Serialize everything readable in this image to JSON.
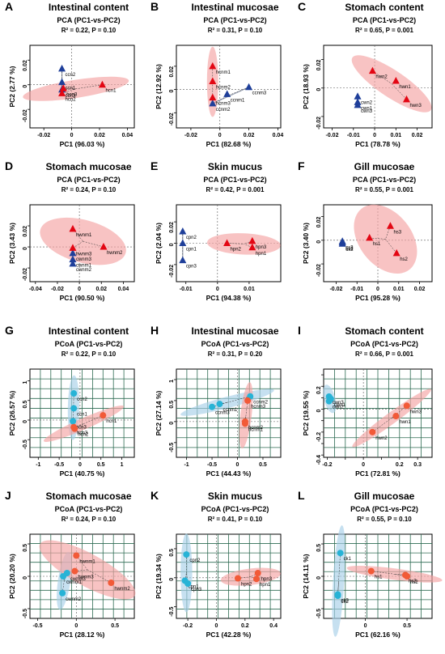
{
  "colors": {
    "group_a": "#e30613",
    "group_b": "#1f3f9a",
    "ellipse_a": "#f4a3a3",
    "ellipse_b": "#a8cfe8",
    "pcoa_a": "#f25a38",
    "pcoa_b": "#27b3d6",
    "grid": "#2d6b52"
  },
  "chart_data": [
    {
      "letter": "A",
      "title": "Intestinal content",
      "subtitle": "PCA (PC1-vs-PC2)",
      "stats": "R² = 0.22, P = 0.10",
      "type": "scatter",
      "method": "PCA",
      "marker": "triangle",
      "xlabel": "PC1 (96.03 %)",
      "ylabel": "PC2 (2.77 %)",
      "xlim": [
        -0.03,
        0.045
      ],
      "ylim": [
        -0.035,
        0.032
      ],
      "xticks": [
        -0.02,
        0,
        0.02,
        0.04
      ],
      "yticks": [
        -0.02,
        0,
        0.02
      ],
      "xtick_labels": [
        "-0.02",
        "0",
        "0.02",
        "0.04"
      ],
      "ytick_labels": [
        "-0.02",
        "0",
        "0.02"
      ],
      "series": [
        {
          "points": [
            {
              "label": "ccn2",
              "x": -0.007,
              "y": 0.013
            },
            {
              "label": "ccn1",
              "x": -0.007,
              "y": 0.002
            },
            {
              "label": "ccn3",
              "x": -0.007,
              "y": -0.004
            }
          ]
        },
        {
          "points": [
            {
              "label": "hcn1",
              "x": 0.022,
              "y": 0.0
            },
            {
              "label": "hcn3",
              "x": -0.006,
              "y": -0.003
            },
            {
              "label": "hcn2",
              "x": -0.007,
              "y": -0.007
            }
          ]
        }
      ]
    },
    {
      "letter": "B",
      "title": "Intestinal mucosae",
      "subtitle": "PCA (PC1-vs-PC2)",
      "stats": "R² = 0.31, P = 0.10",
      "type": "scatter",
      "method": "PCA",
      "marker": "triangle",
      "xlabel": "PC1 (82.68 %)",
      "ylabel": "PC2 (12.92 %)",
      "xlim": [
        -0.03,
        0.042
      ],
      "ylim": [
        -0.033,
        0.038
      ],
      "xticks": [
        -0.02,
        0,
        0.02,
        0.04
      ],
      "yticks": [
        -0.02,
        0,
        0.02
      ],
      "xtick_labels": [
        "-0.02",
        "0",
        "0.02",
        "0.04"
      ],
      "ytick_labels": [
        "-0.02",
        "0",
        "0.02"
      ],
      "series": [
        {
          "points": [
            {
              "label": "ccnm3",
              "x": 0.02,
              "y": 0.002
            },
            {
              "label": "ccnm1",
              "x": 0.005,
              "y": -0.004
            },
            {
              "label": "ccnm2",
              "x": -0.005,
              "y": -0.012
            }
          ]
        },
        {
          "points": [
            {
              "label": "hcnm1",
              "x": -0.005,
              "y": 0.02
            },
            {
              "label": "hcnm2",
              "x": -0.005,
              "y": 0.007
            },
            {
              "label": "hcnm3",
              "x": -0.005,
              "y": -0.007
            }
          ]
        }
      ]
    },
    {
      "letter": "C",
      "title": "Stomach content",
      "subtitle": "PCA (PC1-vs-PC2)",
      "stats": "R² = 0.65, P = 0.001",
      "type": "scatter",
      "method": "PCA",
      "marker": "triangle",
      "xlabel": "PC1 (78.78 %)",
      "ylabel": "PC2 (18.93 %)",
      "xlim": [
        -0.024,
        0.027
      ],
      "ylim": [
        -0.028,
        0.03
      ],
      "xticks": [
        -0.02,
        -0.01,
        0,
        0.01,
        0.02
      ],
      "yticks": [
        -0.02,
        0,
        0.02
      ],
      "xtick_labels": [
        "-0.02",
        "-0.01",
        "0",
        "0.01",
        "0.02"
      ],
      "ytick_labels": [
        "-0.02",
        "0",
        "0.02"
      ],
      "series": [
        {
          "points": [
            {
              "label": "cwn2",
              "x": -0.008,
              "y": -0.006
            },
            {
              "label": "cwn1",
              "x": -0.008,
              "y": -0.01
            },
            {
              "label": "cwn3",
              "x": -0.008,
              "y": -0.012
            }
          ]
        },
        {
          "points": [
            {
              "label": "hwn2",
              "x": -0.001,
              "y": 0.012
            },
            {
              "label": "hwn1",
              "x": 0.01,
              "y": 0.005
            },
            {
              "label": "hwn3",
              "x": 0.015,
              "y": -0.008
            }
          ]
        }
      ]
    },
    {
      "letter": "D",
      "title": "Stomach mucosae",
      "subtitle": "PCA (PC1-vs-PC2)",
      "stats": "R² = 0.24, P = 0.10",
      "type": "scatter",
      "method": "PCA",
      "marker": "triangle",
      "xlabel": "PC1 (90.50 %)",
      "ylabel": "PC2 (3.43 %)",
      "xlim": [
        -0.045,
        0.05
      ],
      "ylim": [
        -0.033,
        0.04
      ],
      "xticks": [
        -0.04,
        -0.02,
        0,
        0.02,
        0.04
      ],
      "yticks": [
        -0.02,
        0,
        0.02
      ],
      "xtick_labels": [
        "-0.04",
        "-0.02",
        "0",
        "0.02",
        "0.04"
      ],
      "ytick_labels": [
        "-0.02",
        "0",
        "0.02"
      ],
      "series": [
        {
          "points": [
            {
              "label": "cwnm3",
              "x": -0.006,
              "y": -0.006
            },
            {
              "label": "cwnm1",
              "x": -0.006,
              "y": -0.012
            },
            {
              "label": "cwnm2",
              "x": -0.006,
              "y": -0.016
            }
          ]
        },
        {
          "points": [
            {
              "label": "hwnm1",
              "x": -0.006,
              "y": 0.017
            },
            {
              "label": "hwnm2",
              "x": 0.022,
              "y": 0.0
            },
            {
              "label": "hwnm3",
              "x": -0.006,
              "y": -0.001
            }
          ]
        }
      ]
    },
    {
      "letter": "E",
      "title": "Skin mucus",
      "subtitle": "PCA (PC1-vs-PC2)",
      "stats": "R² = 0.42, P = 0.001",
      "type": "scatter",
      "method": "PCA",
      "marker": "triangle",
      "xlabel": "PC1 (94.38 %)",
      "ylabel": "PC2 (2.04 %)",
      "xlim": [
        -0.013,
        0.02
      ],
      "ylim": [
        -0.036,
        0.036
      ],
      "xticks": [
        -0.01,
        0,
        0.01
      ],
      "yticks": [
        -0.02,
        0,
        0.02
      ],
      "xtick_labels": [
        "-0.01",
        "0",
        "0.01"
      ],
      "ytick_labels": [
        "-0.02",
        "0",
        "0.02"
      ],
      "series": [
        {
          "points": [
            {
              "label": "cpn2",
              "x": -0.011,
              "y": 0.011
            },
            {
              "label": "cpn1",
              "x": -0.011,
              "y": 0.0
            },
            {
              "label": "cpn3",
              "x": -0.011,
              "y": -0.016
            }
          ]
        },
        {
          "points": [
            {
              "label": "hpn2",
              "x": 0.003,
              "y": 0.0
            },
            {
              "label": "hpn3",
              "x": 0.011,
              "y": 0.002
            },
            {
              "label": "hpn1",
              "x": 0.011,
              "y": -0.004
            }
          ]
        }
      ]
    },
    {
      "letter": "F",
      "title": "Gill mucosae",
      "subtitle": "PCA (PC1-vs-PC2)",
      "stats": "R² = 0.55, P = 0.001",
      "type": "scatter",
      "method": "PCA",
      "marker": "triangle",
      "xlabel": "PC1 (95.28 %)",
      "ylabel": "PC2 (3.40 %)",
      "xlim": [
        -0.026,
        0.026
      ],
      "ylim": [
        -0.035,
        0.03
      ],
      "xticks": [
        -0.02,
        -0.01,
        0,
        0.01,
        0.02
      ],
      "yticks": [
        -0.02,
        0,
        0.02
      ],
      "xtick_labels": [
        "-0.02",
        "-0.01",
        "0",
        "0.01",
        "0.02"
      ],
      "ytick_labels": [
        "-0.02",
        "0",
        "0.02"
      ],
      "series": [
        {
          "points": [
            {
              "label": "cs3",
              "x": -0.017,
              "y": -0.001
            },
            {
              "label": "cs1",
              "x": -0.017,
              "y": -0.002
            },
            {
              "label": "cs2",
              "x": -0.017,
              "y": -0.003
            }
          ]
        },
        {
          "points": [
            {
              "label": "hs3",
              "x": 0.006,
              "y": 0.012
            },
            {
              "label": "hs1",
              "x": -0.004,
              "y": 0.002
            },
            {
              "label": "hs2",
              "x": 0.009,
              "y": -0.011
            }
          ]
        }
      ]
    },
    {
      "letter": "G",
      "title": "Intestinal content",
      "subtitle": "PCoA (PC1-vs-PC2)",
      "stats": "R² = 0.22, P = 0.10",
      "type": "scatter",
      "method": "PCoA",
      "marker": "circle",
      "xlabel": "PC1 (40.75 %)",
      "ylabel": "PC2 (26.57 %)",
      "xlim": [
        -1.2,
        1.3
      ],
      "ylim": [
        -0.95,
        1.3
      ],
      "xticks": [
        -1,
        -0.5,
        0,
        0.5,
        1
      ],
      "yticks": [
        -0.5,
        0,
        0.5,
        1
      ],
      "xtick_labels": [
        "-1",
        "-0.5",
        "0",
        "0.5",
        "1"
      ],
      "ytick_labels": [
        "-0.5",
        "0",
        "0.5",
        "1"
      ],
      "series": [
        {
          "points": [
            {
              "label": "ccn2",
              "x": -0.15,
              "y": 0.68
            },
            {
              "label": "ccn1",
              "x": -0.15,
              "y": 0.3
            },
            {
              "label": "ccn3",
              "x": -0.17,
              "y": -0.03
            }
          ]
        },
        {
          "points": [
            {
              "label": "hcn1",
              "x": 0.55,
              "y": 0.12
            },
            {
              "label": "hcn3",
              "x": -0.15,
              "y": -0.18
            },
            {
              "label": "hcn2",
              "x": -0.13,
              "y": -0.22
            }
          ]
        }
      ]
    },
    {
      "letter": "H",
      "title": "Intestinal mucosae",
      "subtitle": "PCoA (PC1-vs-PC2)",
      "stats": "R² = 0.31, P = 0.20",
      "type": "scatter",
      "method": "PCoA",
      "marker": "circle",
      "xlabel": "PC1 (44.43 %)",
      "ylabel": "PC2 (27.14 %)",
      "xlim": [
        -1.2,
        0.85
      ],
      "ylim": [
        -0.85,
        1.25
      ],
      "xticks": [
        -1,
        -0.5,
        0,
        0.5
      ],
      "yticks": [
        -0.5,
        0,
        0.5,
        1
      ],
      "xtick_labels": [
        "-1",
        "-0.5",
        "0",
        "0.5"
      ],
      "ytick_labels": [
        "-0.5",
        "0",
        "0.5",
        "1"
      ],
      "series": [
        {
          "points": [
            {
              "label": "ccnm3",
              "x": -0.5,
              "y": 0.35
            },
            {
              "label": "ccnm1",
              "x": -0.35,
              "y": 0.42
            },
            {
              "label": "ccnm2",
              "x": 0.25,
              "y": 0.6
            }
          ]
        },
        {
          "points": [
            {
              "label": "hcnm3",
              "x": 0.2,
              "y": 0.5
            },
            {
              "label": "hcnm2",
              "x": 0.15,
              "y": 0.0
            },
            {
              "label": "hcnm1",
              "x": 0.15,
              "y": -0.05
            }
          ]
        }
      ]
    },
    {
      "letter": "I",
      "title": "Stomach content",
      "subtitle": "PCoA (PC1-vs-PC2)",
      "stats": "R² = 0.66, P = 0.001",
      "type": "scatter",
      "method": "PCoA",
      "marker": "circle",
      "xlabel": "PC1 (72.81 %)",
      "ylabel": "PC2 (19.55 %)",
      "xlim": [
        -0.22,
        0.38
      ],
      "ylim": [
        -0.42,
        0.35
      ],
      "xticks": [
        -0.2,
        -0.1,
        0,
        0.1,
        0.2,
        0.3
      ],
      "yticks": [
        -0.4,
        -0.3,
        -0.2,
        -0.1,
        0,
        0.1,
        0.2,
        0.3
      ],
      "xtick_labels": [
        "-0.2",
        "",
        "0",
        "",
        "0.2",
        "0.3"
      ],
      "ytick_labels": [
        "-0.4",
        "",
        "-0.2",
        "",
        "0",
        "",
        "0.2",
        ""
      ],
      "series": [
        {
          "points": [
            {
              "label": "cwn3",
              "x": -0.19,
              "y": 0.11
            },
            {
              "label": "cwn1",
              "x": -0.18,
              "y": 0.09
            },
            {
              "label": "cwn2",
              "x": -0.19,
              "y": 0.07
            }
          ]
        },
        {
          "points": [
            {
              "label": "hwn3",
              "x": 0.24,
              "y": 0.03
            },
            {
              "label": "hwn1",
              "x": 0.18,
              "y": -0.06
            },
            {
              "label": "hwn2",
              "x": 0.05,
              "y": -0.2
            }
          ]
        }
      ]
    },
    {
      "letter": "J",
      "title": "Stomach mucosae",
      "subtitle": "PCoA (PC1-vs-PC2)",
      "stats": "R² = 0.24, P = 0.10",
      "type": "scatter",
      "method": "PCoA",
      "marker": "circle",
      "xlabel": "PC1 (28.12 %)",
      "ylabel": "PC2 (20.20 %)",
      "xlim": [
        -0.6,
        0.75
      ],
      "ylim": [
        -0.65,
        0.65
      ],
      "xticks": [
        -0.5,
        0,
        0.5
      ],
      "yticks": [
        -0.5,
        0,
        0.5
      ],
      "xtick_labels": [
        "-0.5",
        "0",
        "0.5"
      ],
      "ytick_labels": [
        "-0.5",
        "0",
        "0.5"
      ],
      "series": [
        {
          "points": [
            {
              "label": "cwnm3",
              "x": -0.12,
              "y": 0.05
            },
            {
              "label": "cwnm1",
              "x": -0.17,
              "y": 0.0
            },
            {
              "label": "cwnm2",
              "x": -0.18,
              "y": -0.26
            }
          ]
        },
        {
          "points": [
            {
              "label": "hwnm1",
              "x": 0.0,
              "y": 0.32
            },
            {
              "label": "hwnm3",
              "x": -0.02,
              "y": 0.08
            },
            {
              "label": "hwnm2",
              "x": 0.45,
              "y": -0.1
            }
          ]
        }
      ]
    },
    {
      "letter": "K",
      "title": "Skin mucus",
      "subtitle": "PCoA (PC1-vs-PC2)",
      "stats": "R² = 0.41, P = 0.10",
      "type": "scatter",
      "method": "PCoA",
      "marker": "circle",
      "xlabel": "PC1 (42.28 %)",
      "ylabel": "PC2 (19.34 %)",
      "xlim": [
        -0.28,
        0.45
      ],
      "ylim": [
        -0.7,
        0.75
      ],
      "xticks": [
        -0.2,
        0,
        0.2,
        0.4
      ],
      "yticks": [
        -0.5,
        0,
        0.5
      ],
      "xtick_labels": [
        "-0.2",
        "0",
        "0.2",
        "0.4"
      ],
      "ytick_labels": [
        "-0.5",
        "0",
        "0.5"
      ],
      "series": [
        {
          "points": [
            {
              "label": "cpn2",
              "x": -0.21,
              "y": 0.4
            },
            {
              "label": "cpn1",
              "x": -0.22,
              "y": -0.05
            },
            {
              "label": "cpn3",
              "x": -0.2,
              "y": -0.1
            }
          ]
        },
        {
          "points": [
            {
              "label": "hpn3",
              "x": 0.29,
              "y": 0.08
            },
            {
              "label": "hpn2",
              "x": 0.15,
              "y": -0.01
            },
            {
              "label": "hpn1",
              "x": 0.28,
              "y": -0.02
            }
          ]
        }
      ]
    },
    {
      "letter": "L",
      "title": "Gill mucosae",
      "subtitle": "PCoA (PC1-vs-PC2)",
      "stats": "R² = 0.55, P = 0.10",
      "type": "scatter",
      "method": "PCoA",
      "marker": "circle",
      "xlabel": "PC1 (62.16 %)",
      "ylabel": "PC2 (14.11 %)",
      "xlim": [
        -0.5,
        0.8
      ],
      "ylim": [
        -0.65,
        0.65
      ],
      "xticks": [
        0,
        0.5
      ],
      "yticks": [
        -0.5,
        0,
        0.5
      ],
      "xtick_labels": [
        "0",
        "0.5"
      ],
      "ytick_labels": [
        "-0.5",
        "0",
        "0.5"
      ],
      "series": [
        {
          "points": [
            {
              "label": "ck1",
              "x": -0.3,
              "y": 0.36
            },
            {
              "label": "ck3",
              "x": -0.33,
              "y": -0.28
            },
            {
              "label": "ck2",
              "x": -0.33,
              "y": -0.3
            }
          ]
        },
        {
          "points": [
            {
              "label": "hs1",
              "x": 0.07,
              "y": 0.08
            },
            {
              "label": "hs3",
              "x": 0.48,
              "y": 0.02
            },
            {
              "label": "hs2",
              "x": 0.5,
              "y": 0.0
            }
          ]
        }
      ]
    }
  ]
}
